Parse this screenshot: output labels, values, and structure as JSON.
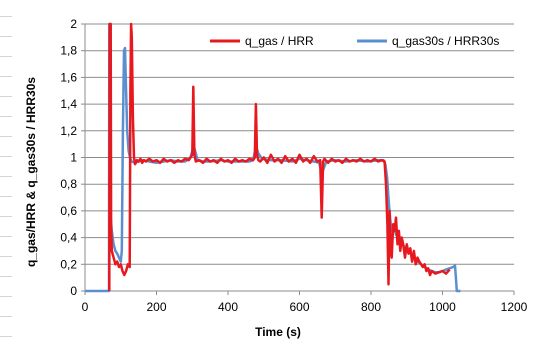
{
  "chart_data": {
    "type": "line",
    "title": "",
    "xlabel": "Time (s)",
    "ylabel": "q_gas/HRR & q_gas30s / HRR30s",
    "xlim": [
      0,
      1200
    ],
    "ylim": [
      0,
      2
    ],
    "x_ticks": [
      "0",
      "200",
      "400",
      "600",
      "800",
      "1000",
      "1200"
    ],
    "y_ticks": [
      "0",
      "0,2",
      "0,4",
      "0,6",
      "0,8",
      "1",
      "1,2",
      "1,4",
      "1,6",
      "1,8",
      "2"
    ],
    "grid": "horizontal",
    "legend_position": "top-right",
    "colors": {
      "q_gas": "#e8191e",
      "q_gas30s": "#5b8fd0"
    },
    "series": [
      {
        "name": "q_gas / HRR",
        "points": [
          [
            68,
            0
          ],
          [
            69,
            2.0
          ],
          [
            72,
            2.0
          ],
          [
            73,
            0.5
          ],
          [
            75,
            0.3
          ],
          [
            80,
            0.25
          ],
          [
            85,
            0.2
          ],
          [
            90,
            0.22
          ],
          [
            95,
            0.18
          ],
          [
            100,
            0.2
          ],
          [
            105,
            0.15
          ],
          [
            110,
            0.12
          ],
          [
            115,
            0.15
          ],
          [
            120,
            0.2
          ],
          [
            125,
            0.18
          ],
          [
            127,
            1.5
          ],
          [
            129,
            2.0
          ],
          [
            131,
            1.9
          ],
          [
            134,
            1.3
          ],
          [
            137,
            1.0
          ],
          [
            140,
            0.95
          ],
          [
            145,
            0.98
          ],
          [
            150,
            0.97
          ],
          [
            155,
            0.99
          ],
          [
            160,
            0.96
          ],
          [
            165,
            0.98
          ],
          [
            170,
            0.97
          ],
          [
            180,
            0.99
          ],
          [
            190,
            0.97
          ],
          [
            200,
            0.98
          ],
          [
            210,
            0.96
          ],
          [
            220,
            0.99
          ],
          [
            230,
            0.97
          ],
          [
            240,
            0.98
          ],
          [
            250,
            0.96
          ],
          [
            260,
            0.98
          ],
          [
            270,
            0.97
          ],
          [
            280,
            0.99
          ],
          [
            290,
            0.98
          ],
          [
            300,
            1.02
          ],
          [
            303,
            1.53
          ],
          [
            306,
            1.02
          ],
          [
            310,
            0.97
          ],
          [
            320,
            0.98
          ],
          [
            330,
            0.96
          ],
          [
            340,
            0.99
          ],
          [
            350,
            0.97
          ],
          [
            360,
            0.98
          ],
          [
            370,
            0.96
          ],
          [
            380,
            0.99
          ],
          [
            390,
            0.97
          ],
          [
            400,
            0.98
          ],
          [
            410,
            0.96
          ],
          [
            420,
            0.99
          ],
          [
            430,
            0.97
          ],
          [
            440,
            0.98
          ],
          [
            450,
            0.97
          ],
          [
            460,
            0.99
          ],
          [
            470,
            0.98
          ],
          [
            475,
            1.0
          ],
          [
            478,
            1.4
          ],
          [
            481,
            1.02
          ],
          [
            485,
            0.98
          ],
          [
            490,
            0.97
          ],
          [
            500,
            1.0
          ],
          [
            510,
            0.96
          ],
          [
            520,
            1.02
          ],
          [
            530,
            0.97
          ],
          [
            540,
            0.99
          ],
          [
            550,
            0.96
          ],
          [
            560,
            1.01
          ],
          [
            570,
            0.97
          ],
          [
            580,
            0.99
          ],
          [
            590,
            0.96
          ],
          [
            600,
            1.02
          ],
          [
            610,
            0.97
          ],
          [
            620,
            0.99
          ],
          [
            630,
            0.96
          ],
          [
            640,
            1.01
          ],
          [
            650,
            0.97
          ],
          [
            658,
            0.98
          ],
          [
            662,
            0.55
          ],
          [
            666,
            0.97
          ],
          [
            670,
            0.99
          ],
          [
            680,
            0.96
          ],
          [
            690,
            0.99
          ],
          [
            700,
            0.97
          ],
          [
            710,
            0.98
          ],
          [
            720,
            0.96
          ],
          [
            730,
            0.99
          ],
          [
            740,
            0.97
          ],
          [
            750,
            0.98
          ],
          [
            760,
            0.97
          ],
          [
            770,
            0.99
          ],
          [
            780,
            0.97
          ],
          [
            790,
            0.98
          ],
          [
            800,
            0.97
          ],
          [
            810,
            0.99
          ],
          [
            820,
            0.97
          ],
          [
            830,
            0.98
          ],
          [
            838,
            0.97
          ],
          [
            842,
            0.8
          ],
          [
            846,
            0.5
          ],
          [
            849,
            0.05
          ],
          [
            852,
            0.6
          ],
          [
            855,
            0.3
          ],
          [
            858,
            0.25
          ],
          [
            862,
            0.5
          ],
          [
            866,
            0.45
          ],
          [
            870,
            0.55
          ],
          [
            874,
            0.35
          ],
          [
            878,
            0.45
          ],
          [
            882,
            0.3
          ],
          [
            886,
            0.4
          ],
          [
            890,
            0.35
          ],
          [
            895,
            0.25
          ],
          [
            900,
            0.35
          ],
          [
            905,
            0.28
          ],
          [
            910,
            0.32
          ],
          [
            915,
            0.22
          ],
          [
            920,
            0.3
          ],
          [
            925,
            0.2
          ],
          [
            930,
            0.25
          ],
          [
            935,
            0.22
          ],
          [
            940,
            0.2
          ],
          [
            945,
            0.18
          ],
          [
            950,
            0.2
          ],
          [
            955,
            0.15
          ],
          [
            960,
            0.17
          ],
          [
            965,
            0.12
          ],
          [
            970,
            0.15
          ],
          [
            980,
            0.13
          ],
          [
            990,
            0.14
          ],
          [
            1000,
            0.15
          ],
          [
            1010,
            0.13
          ],
          [
            1020,
            0.16
          ]
        ]
      },
      {
        "name": "q_gas30s / HRR30s",
        "points": [
          [
            0,
            0
          ],
          [
            20,
            0
          ],
          [
            67,
            0
          ],
          [
            68,
            2.0
          ],
          [
            72,
            0.55
          ],
          [
            75,
            0.45
          ],
          [
            80,
            0.35
          ],
          [
            85,
            0.3
          ],
          [
            90,
            0.28
          ],
          [
            95,
            0.25
          ],
          [
            100,
            0.22
          ],
          [
            103,
            0.3
          ],
          [
            106,
            1.2
          ],
          [
            109,
            1.8
          ],
          [
            112,
            1.82
          ],
          [
            115,
            1.5
          ],
          [
            118,
            1.2
          ],
          [
            122,
            1.05
          ],
          [
            126,
            1.0
          ],
          [
            130,
            0.97
          ],
          [
            140,
            0.96
          ],
          [
            150,
            0.97
          ],
          [
            160,
            0.98
          ],
          [
            180,
            0.97
          ],
          [
            200,
            0.96
          ],
          [
            220,
            0.97
          ],
          [
            240,
            0.98
          ],
          [
            260,
            0.97
          ],
          [
            280,
            0.97
          ],
          [
            295,
            1.0
          ],
          [
            300,
            1.05
          ],
          [
            305,
            1.08
          ],
          [
            310,
            1.03
          ],
          [
            315,
            0.98
          ],
          [
            330,
            0.97
          ],
          [
            350,
            0.97
          ],
          [
            380,
            0.98
          ],
          [
            400,
            0.97
          ],
          [
            430,
            0.97
          ],
          [
            460,
            0.97
          ],
          [
            470,
            0.98
          ],
          [
            475,
            1.04
          ],
          [
            480,
            1.07
          ],
          [
            485,
            1.03
          ],
          [
            495,
            0.99
          ],
          [
            520,
            0.98
          ],
          [
            550,
            0.98
          ],
          [
            580,
            0.97
          ],
          [
            600,
            0.99
          ],
          [
            620,
            0.98
          ],
          [
            640,
            0.97
          ],
          [
            655,
            0.96
          ],
          [
            662,
            0.88
          ],
          [
            668,
            0.92
          ],
          [
            675,
            0.97
          ],
          [
            700,
            0.98
          ],
          [
            730,
            0.97
          ],
          [
            760,
            0.98
          ],
          [
            790,
            0.97
          ],
          [
            820,
            0.98
          ],
          [
            835,
            0.98
          ],
          [
            840,
            0.95
          ],
          [
            845,
            0.85
          ],
          [
            850,
            0.65
          ],
          [
            855,
            0.5
          ],
          [
            860,
            0.45
          ],
          [
            865,
            0.48
          ],
          [
            870,
            0.42
          ],
          [
            875,
            0.45
          ],
          [
            880,
            0.38
          ],
          [
            885,
            0.4
          ],
          [
            890,
            0.34
          ],
          [
            900,
            0.32
          ],
          [
            910,
            0.28
          ],
          [
            920,
            0.25
          ],
          [
            930,
            0.22
          ],
          [
            940,
            0.2
          ],
          [
            950,
            0.18
          ],
          [
            960,
            0.16
          ],
          [
            970,
            0.15
          ],
          [
            980,
            0.14
          ],
          [
            990,
            0.14
          ],
          [
            1000,
            0.15
          ],
          [
            1010,
            0.16
          ],
          [
            1020,
            0.17
          ],
          [
            1030,
            0.18
          ],
          [
            1035,
            0.19
          ],
          [
            1038,
            0.08
          ],
          [
            1040,
            0
          ],
          [
            1050,
            0
          ]
        ]
      }
    ]
  }
}
